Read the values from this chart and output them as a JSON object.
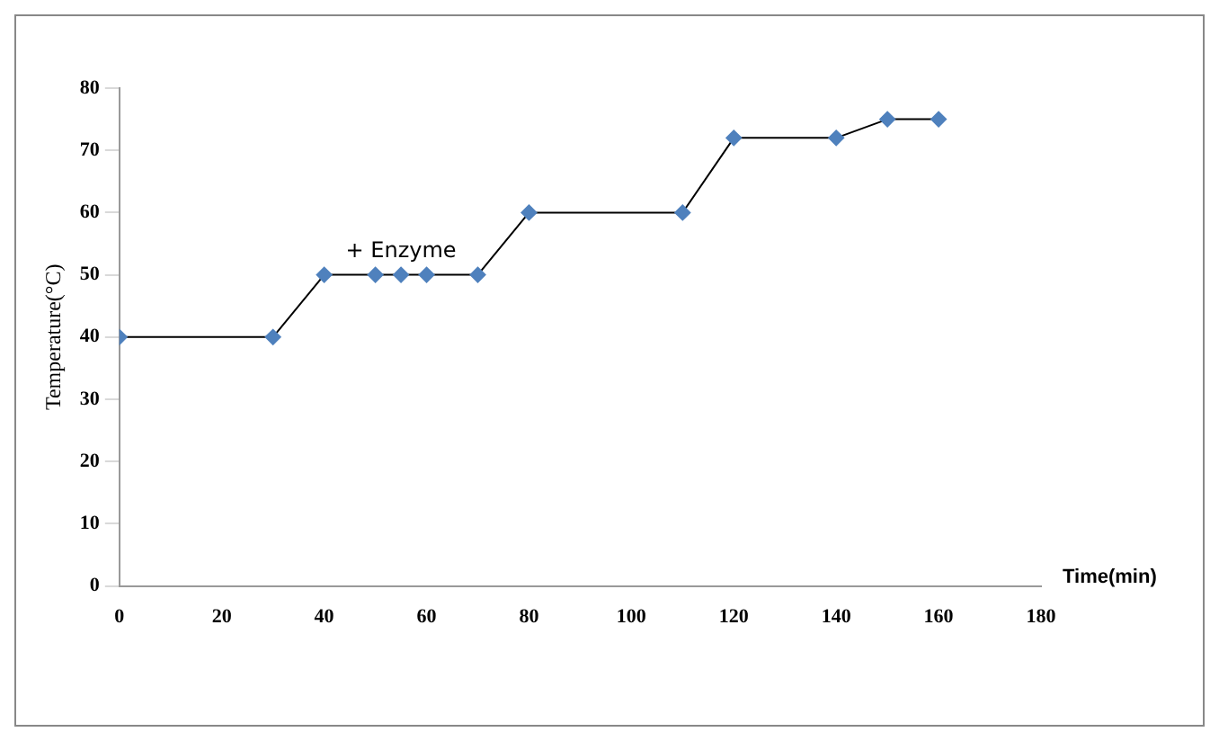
{
  "chart_data": {
    "type": "line",
    "xlabel": "Time(min)",
    "ylabel": "Temperature(°C)",
    "x": [
      0,
      30,
      40,
      50,
      55,
      60,
      70,
      80,
      110,
      120,
      140,
      150,
      160
    ],
    "series": [
      {
        "color": "#4f81bd",
        "values": [
          40,
          40,
          50,
          50,
          50,
          50,
          50,
          60,
          60,
          72,
          72,
          75,
          75
        ]
      }
    ],
    "xlim": [
      0,
      180
    ],
    "xticks": [
      0,
      20,
      40,
      60,
      80,
      100,
      120,
      140,
      160,
      180
    ],
    "ylim": [
      0,
      80
    ],
    "yticks": [
      0,
      10,
      20,
      30,
      40,
      50,
      60,
      70,
      80
    ],
    "annotations": [
      {
        "text": "+ Enzyme",
        "x": 55,
        "y": 50
      }
    ],
    "grid": false,
    "legend": false,
    "marker": "diamond",
    "line_style": "solid"
  }
}
